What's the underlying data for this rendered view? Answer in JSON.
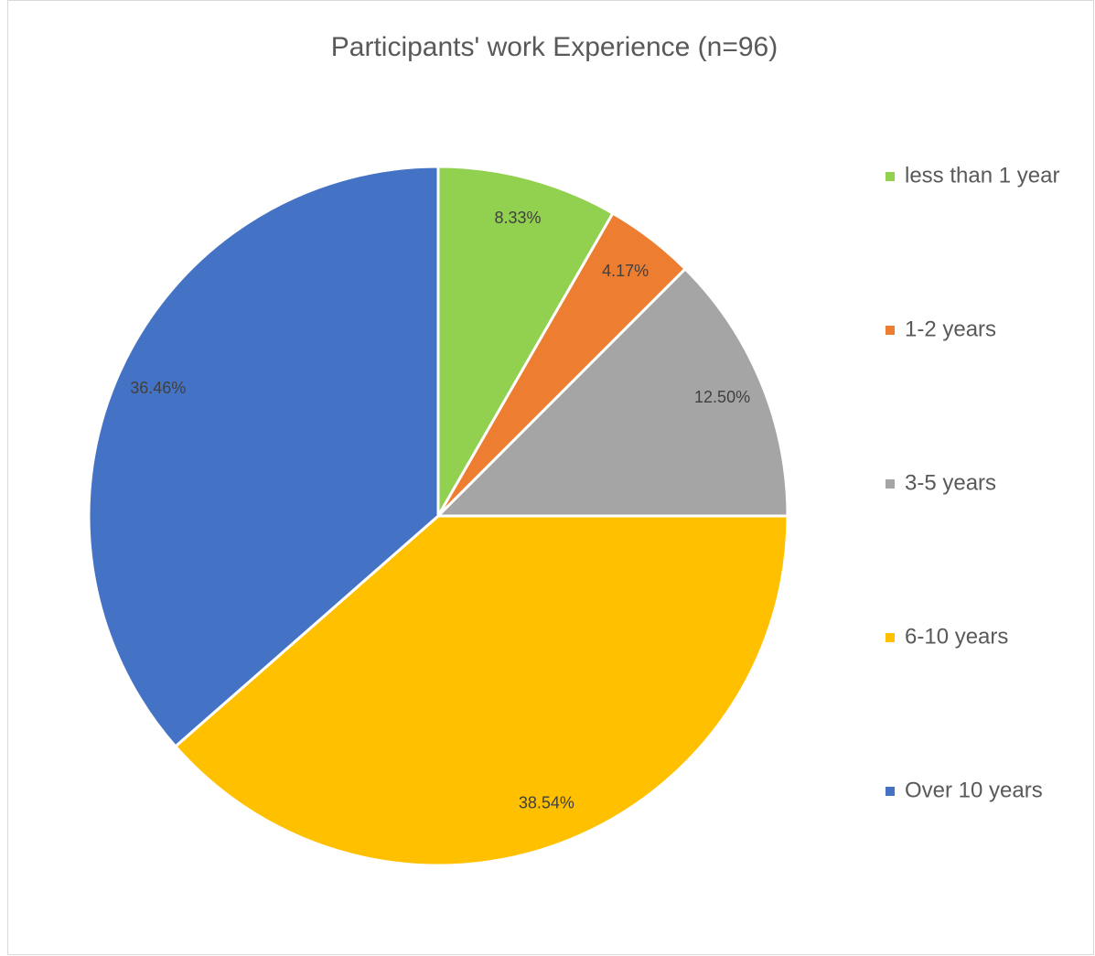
{
  "chart_data": {
    "type": "pie",
    "title": "Participants' work Experience (n=96)",
    "categories": [
      "less than 1 year",
      "1-2 years",
      "3-5 years",
      "6-10 years",
      "Over 10 years"
    ],
    "values": [
      8.33,
      4.17,
      12.5,
      38.54,
      36.46
    ],
    "value_labels": [
      "8.33%",
      "4.17%",
      "12.50%",
      "38.54%",
      "36.46%"
    ],
    "colors": [
      "#92d050",
      "#ed7d31",
      "#a5a5a5",
      "#ffc000",
      "#4472c4"
    ],
    "legend": "right"
  }
}
